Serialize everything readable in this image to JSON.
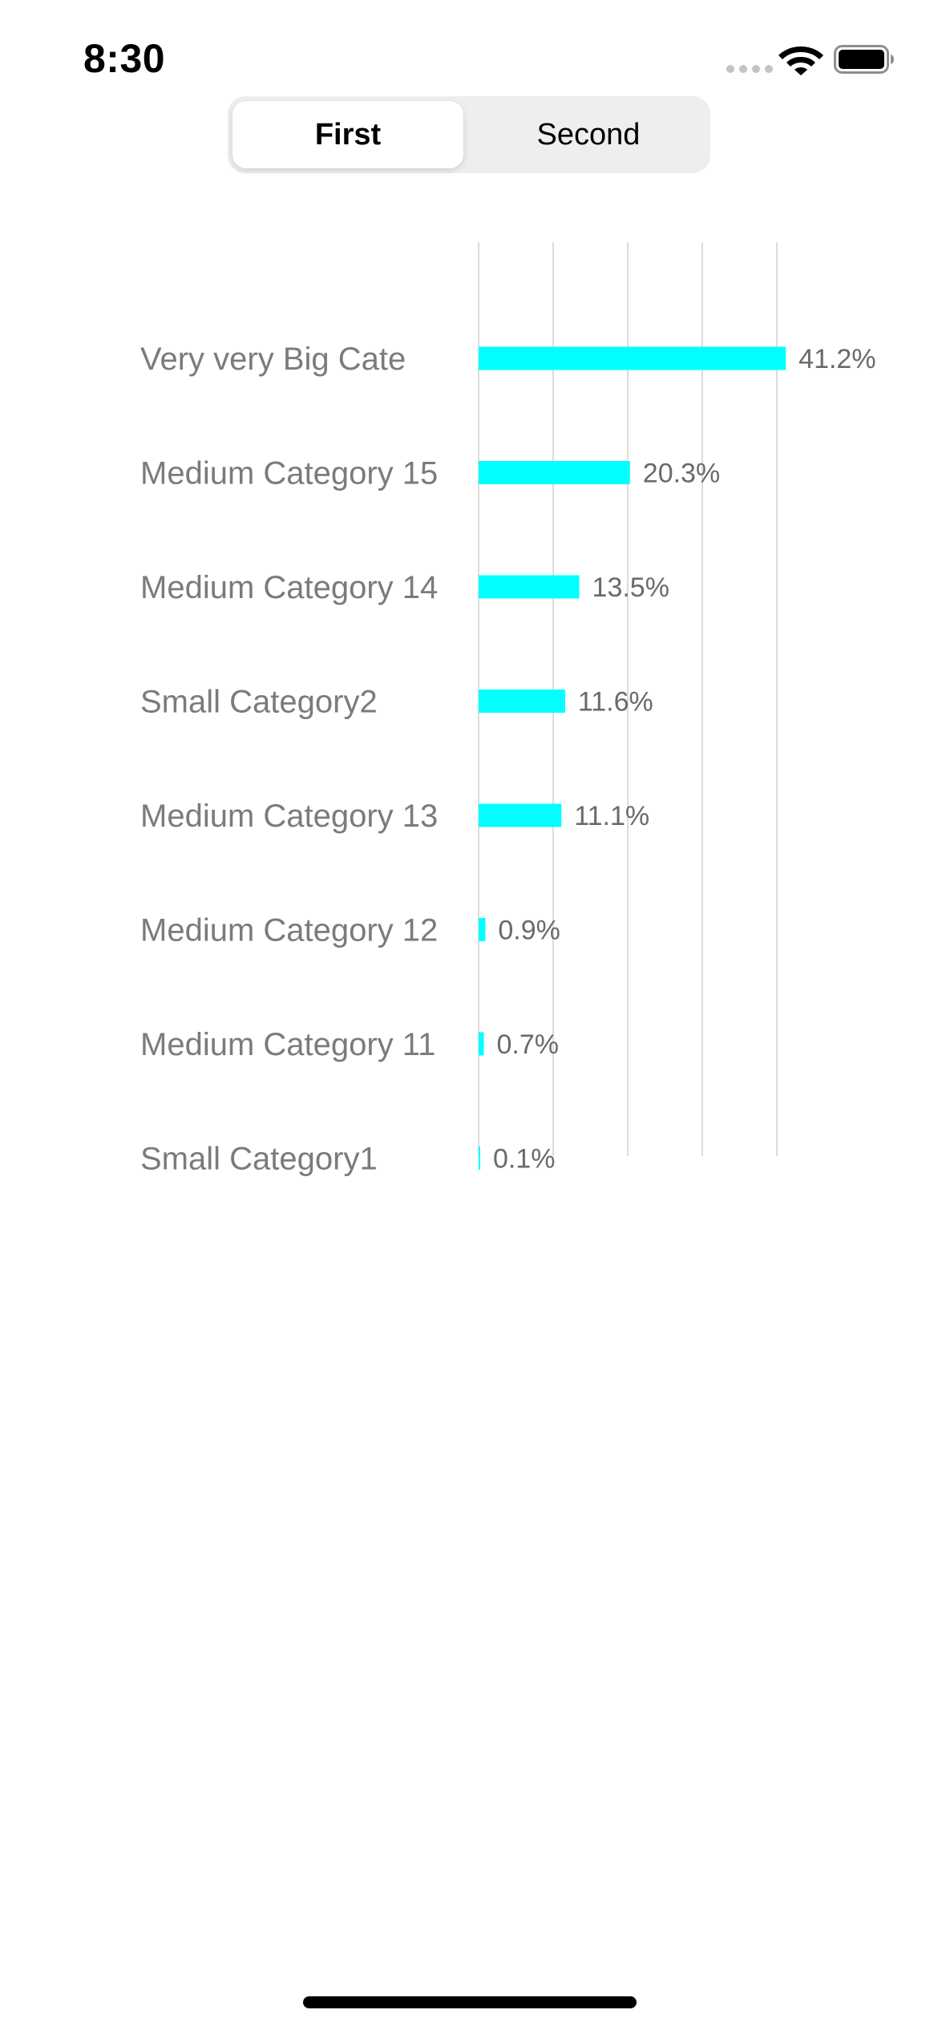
{
  "status_bar": {
    "time": "8:30",
    "icons": [
      "cellular-signal-icon",
      "wifi-icon",
      "battery-icon"
    ]
  },
  "segmented_control": {
    "segments": [
      {
        "label": "First",
        "selected": true
      },
      {
        "label": "Second",
        "selected": false
      }
    ]
  },
  "colors": {
    "bar": "#00FFFF",
    "gridline": "#dcdcdc",
    "category_text": "#7b7b7b",
    "value_text": "#6a6a6a"
  },
  "chart_data": {
    "type": "bar",
    "orientation": "horizontal",
    "categories": [
      "Very very Big Cate",
      "Medium Category 15",
      "Medium Category 14",
      "Small Category2",
      "Medium Category 13",
      "Medium Category 12",
      "Medium Category 11",
      "Small Category1"
    ],
    "values": [
      41.2,
      20.3,
      13.5,
      11.6,
      11.1,
      0.9,
      0.7,
      0.1
    ],
    "value_labels": [
      "41.2%",
      "20.3%",
      "13.5%",
      "11.6%",
      "11.1%",
      "0.9%",
      "0.7%",
      "0.1%"
    ],
    "xlim": [
      0,
      50
    ],
    "grid": true,
    "gridline_step": 10,
    "title": "",
    "xlabel": "",
    "ylabel": ""
  }
}
